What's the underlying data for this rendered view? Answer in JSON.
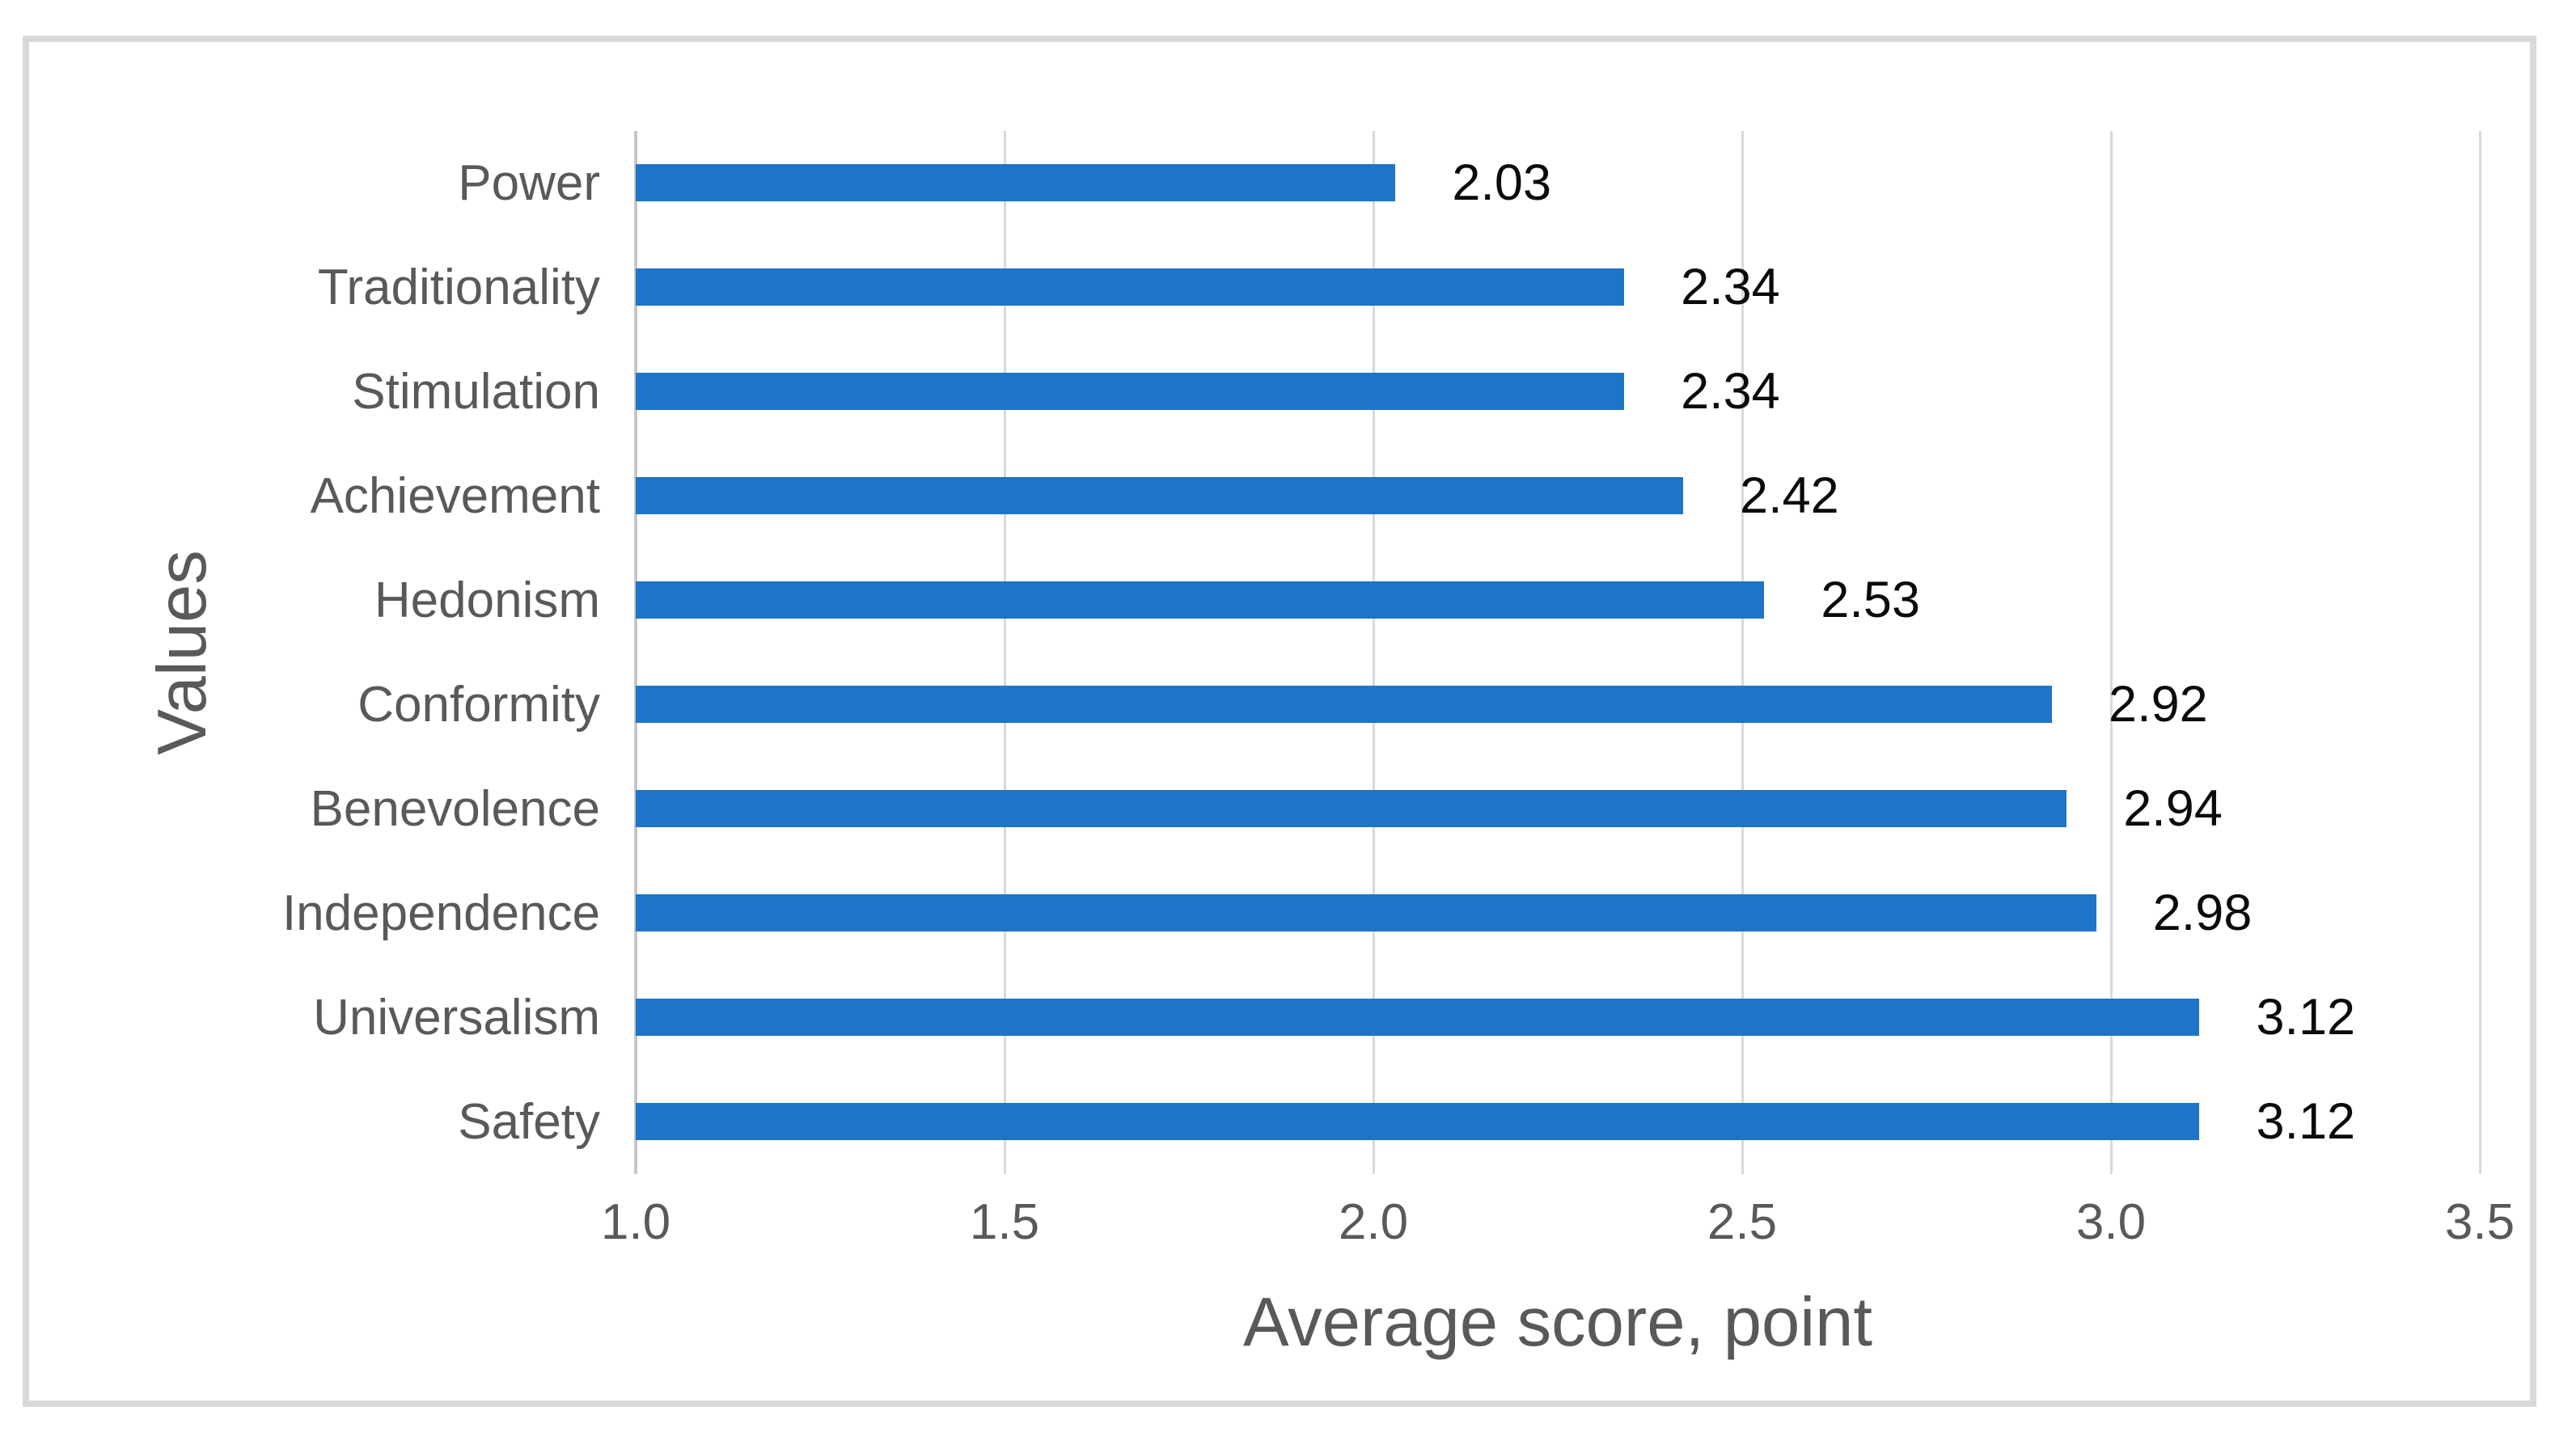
{
  "chart_data": {
    "type": "bar",
    "orientation": "horizontal",
    "title": "",
    "xlabel": "Average score, point",
    "ylabel": "Values",
    "categories": [
      "Power",
      "Traditionality",
      "Stimulation",
      "Achievement",
      "Hedonism",
      "Conformity",
      "Benevolence",
      "Independence",
      "Universalism",
      "Safety"
    ],
    "values": [
      2.03,
      2.34,
      2.34,
      2.42,
      2.53,
      2.92,
      2.94,
      2.98,
      3.12,
      3.12
    ],
    "value_labels": [
      "2.03",
      "2.34",
      "2.34",
      "2.42",
      "2.53",
      "2.92",
      "2.94",
      "2.98",
      "3.12",
      "3.12"
    ],
    "xlim": [
      1.0,
      3.5
    ],
    "xticks": [
      "1.0",
      "1.5",
      "2.0",
      "2.5",
      "3.0",
      "3.5"
    ],
    "grid": true,
    "legend": false
  },
  "colors": {
    "bar": "#1e74c7",
    "gridline": "#d9d9d9",
    "axis_line": "#c6c6c6",
    "frame_border": "#d9d9d9",
    "label_gray": "#595959",
    "value_text": "#0a0a0a",
    "background": "#ffffff"
  }
}
